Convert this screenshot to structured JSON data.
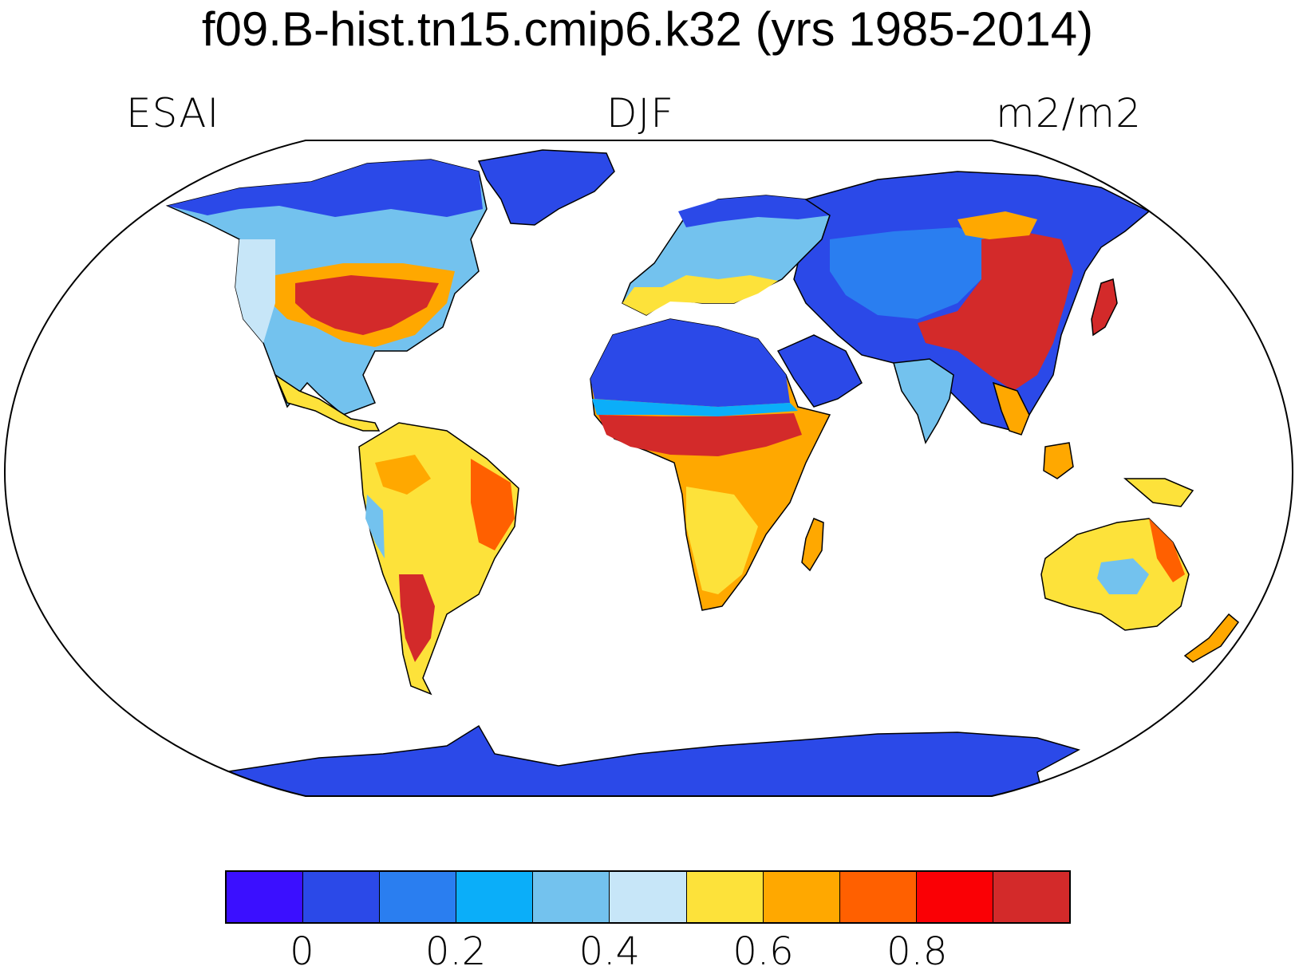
{
  "title": "f09.B-hist.tn15.cmip6.k32 (yrs 1985-2014)",
  "left_label": "ESAI",
  "center_label": "DJF",
  "right_label": "m2/m2",
  "colorbar": {
    "colors": [
      "#3b0fff",
      "#2b49e8",
      "#2a7ef0",
      "#0baef9",
      "#73c2ee",
      "#c7e6f8",
      "#fde23a",
      "#ffa800",
      "#ff6000",
      "#fa0005",
      "#d32a2a"
    ],
    "tick_labels": [
      "0",
      "0.2",
      "0.4",
      "0.6",
      "0.8"
    ]
  },
  "map_colors": {
    "ocean": "#ffffff",
    "coast": "#000000"
  }
}
